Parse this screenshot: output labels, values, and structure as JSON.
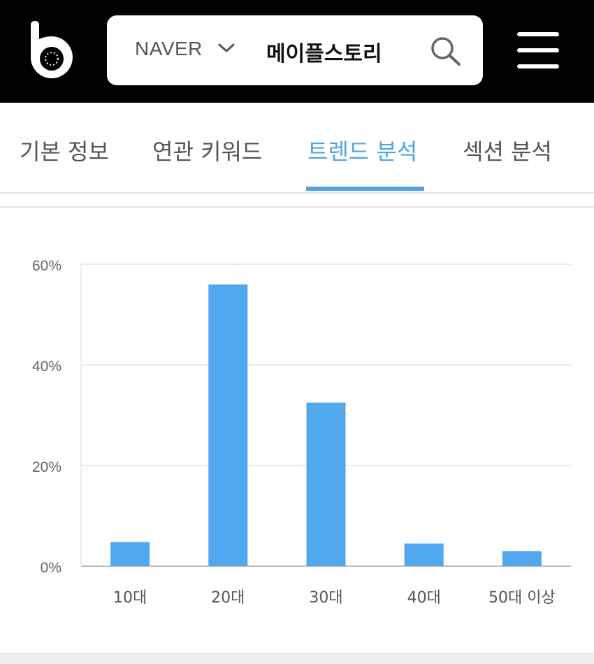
{
  "header": {
    "search_engine": "NAVER",
    "query": "메이플스토리"
  },
  "tabs": [
    {
      "label": "기본 정보",
      "active": false
    },
    {
      "label": "연관 키워드",
      "active": false
    },
    {
      "label": "트렌드 분석",
      "active": true
    },
    {
      "label": "섹션 분석",
      "active": false
    }
  ],
  "colors": {
    "header_bg": "#000000",
    "accent": "#4fa3e8",
    "bar": "#52a8ee",
    "tab_text": "#555555"
  },
  "chart_data": {
    "type": "bar",
    "categories": [
      "10대",
      "20대",
      "30대",
      "40대",
      "50대 이상"
    ],
    "values": [
      4.8,
      56,
      32.5,
      4.5,
      3.0
    ],
    "ylim": [
      0,
      60
    ],
    "yticks": [
      "0%",
      "20%",
      "40%",
      "60%"
    ],
    "ytick_values": [
      0,
      20,
      40,
      60
    ],
    "grid": true,
    "title": "",
    "xlabel": "",
    "ylabel": ""
  }
}
